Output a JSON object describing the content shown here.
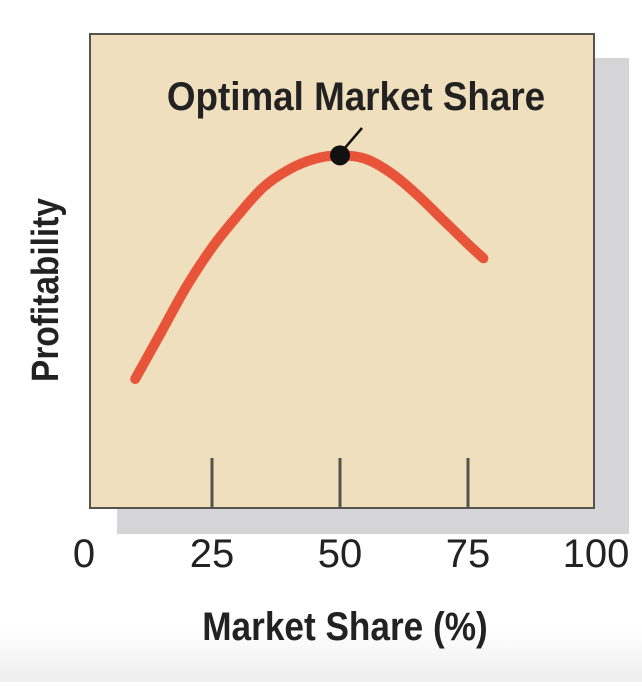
{
  "chart_data": {
    "type": "line",
    "title": "",
    "xlabel": "Market Share (%)",
    "ylabel": "Profitability",
    "xlim": [
      0,
      100
    ],
    "x_ticks": [
      0,
      25,
      50,
      75,
      100
    ],
    "y_ticks": [],
    "grid": false,
    "annotation": {
      "text": "Optimal Market Share",
      "x": 50
    },
    "series": [
      {
        "x": [
          10,
          15,
          20,
          25,
          30,
          35,
          40,
          45,
          50,
          55,
          60,
          65,
          70,
          75,
          78
        ],
        "y": [
          20,
          33,
          46,
          57,
          66,
          74,
          79,
          82,
          83,
          82,
          78,
          72,
          65,
          58,
          54
        ]
      }
    ],
    "colors": {
      "plot_background": "#f0dfbd",
      "shadow": "#d5d5d8",
      "frame": "#55534e",
      "curve": "#e8543a",
      "marker": "#111111",
      "text": "#222222"
    }
  }
}
